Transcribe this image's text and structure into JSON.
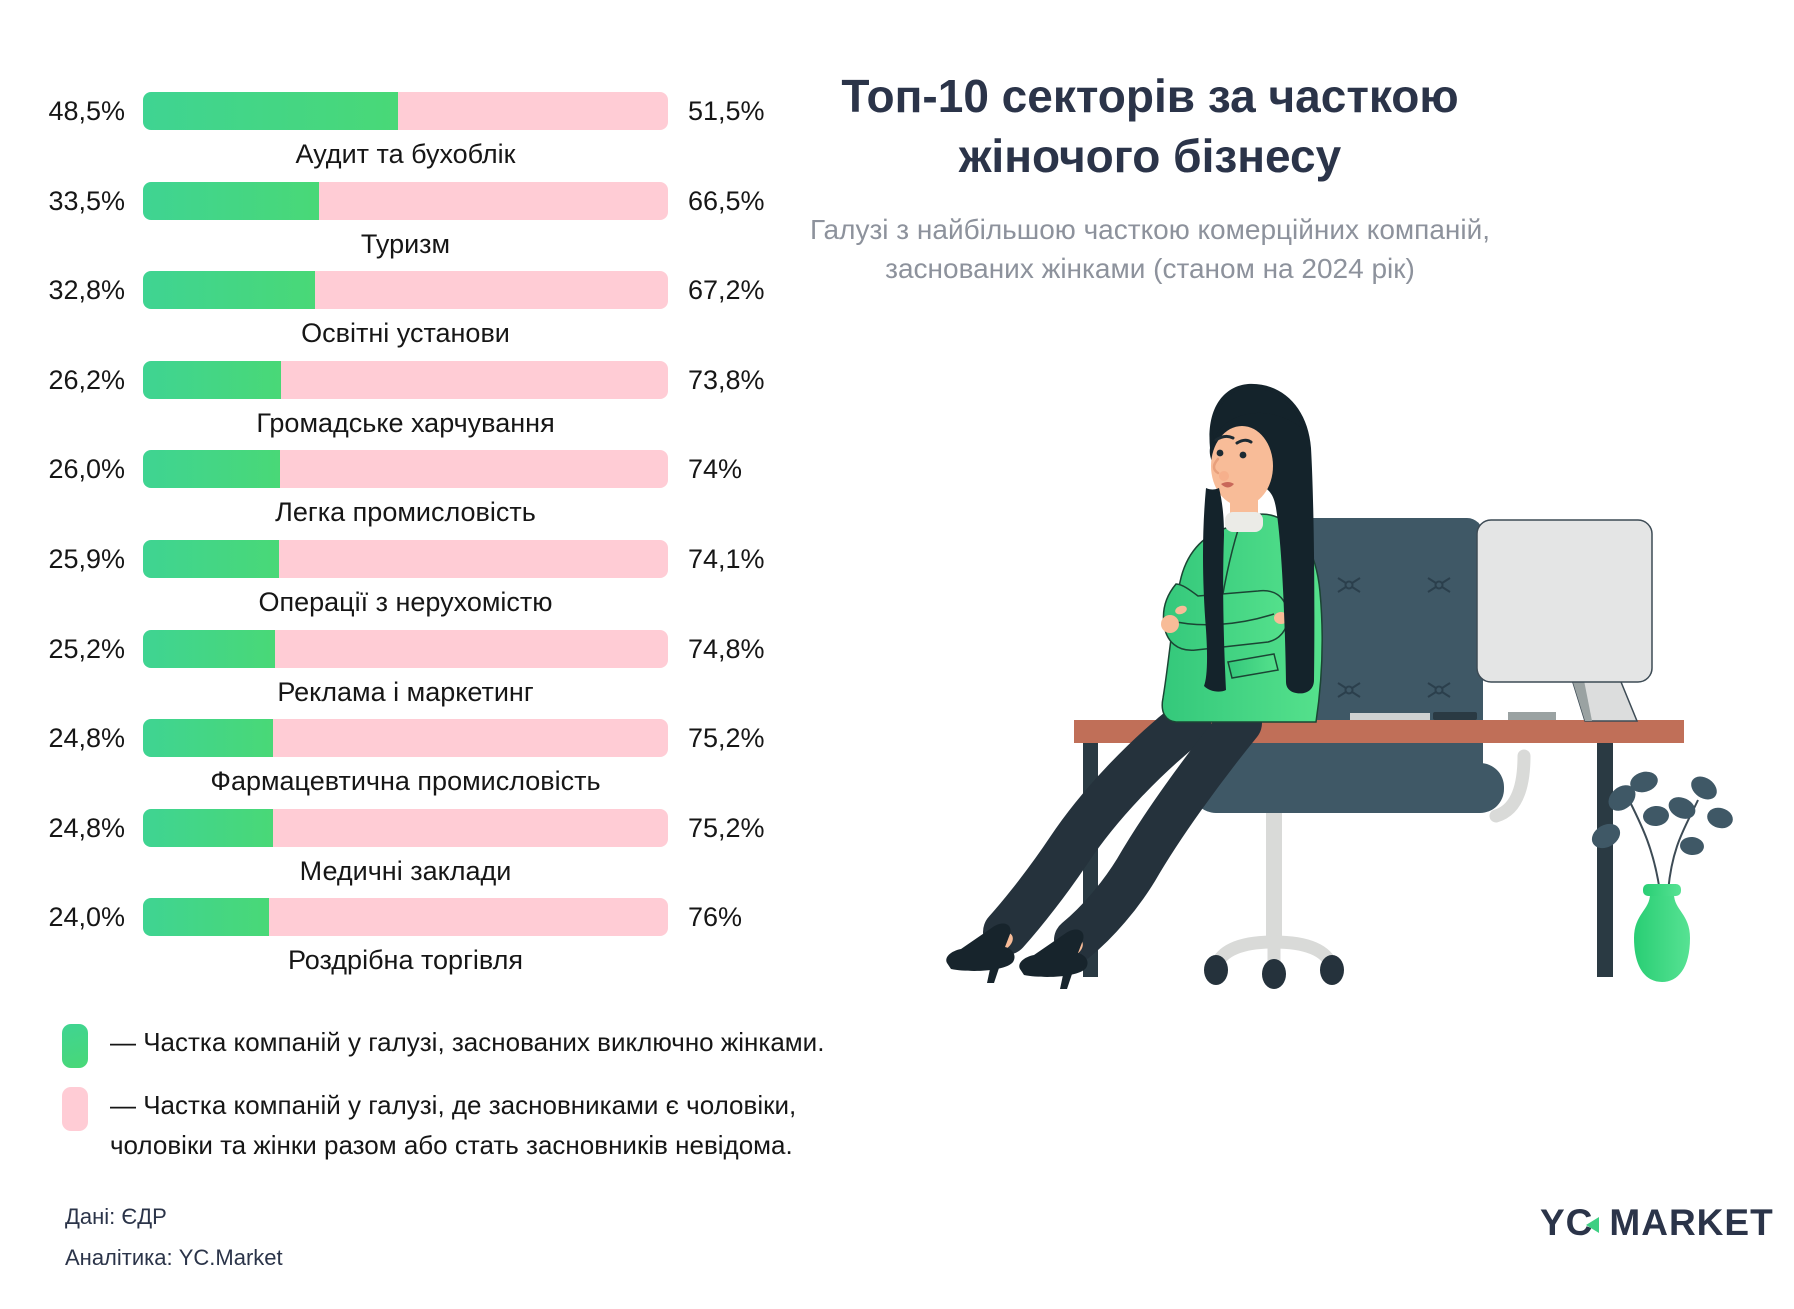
{
  "header": {
    "title": "Топ-10 секторів за часткою\nжіночого бізнесу",
    "subtitle": "Галузі з найбільшою часткою комерційних компаній,\nзаснованих жінками (станом на 2024 рік)"
  },
  "chart_data": {
    "type": "bar",
    "orientation": "horizontal",
    "stacked": true,
    "xlim": [
      0,
      100
    ],
    "categories": [
      "Аудит та бухоблік",
      "Туризм",
      "Освітні установи",
      "Громадське харчування",
      "Легка промисловість",
      "Операції з нерухомістю",
      "Реклама і маркетинг",
      "Фармацевтична промисловість",
      "Медичні заклади",
      "Роздрібна торгівля"
    ],
    "series": [
      {
        "name": "Частка компаній у галузі, заснованих виключно жінками.",
        "color": "#3fd492",
        "values": [
          48.5,
          33.5,
          32.8,
          26.2,
          26.0,
          25.9,
          25.2,
          24.8,
          24.8,
          24.0
        ]
      },
      {
        "name": "Частка компаній у галузі, де засновниками є чоловіки, чоловіки та жінки разом або стать засновників невідома.",
        "color": "#ffccd5",
        "values": [
          51.5,
          66.5,
          67.2,
          73.8,
          74.0,
          74.1,
          74.8,
          75.2,
          75.2,
          76.0
        ]
      }
    ],
    "value_labels_left": [
      "48,5%",
      "33,5%",
      "32,8%",
      "26,2%",
      "26,0%",
      "25,9%",
      "25,2%",
      "24,8%",
      "24,8%",
      "24,0%"
    ],
    "value_labels_right": [
      "51,5%",
      "66,5%",
      "67,2%",
      "73,8%",
      "74%",
      "74,1%",
      "74,8%",
      "75,2%",
      "75,2%",
      "76%"
    ],
    "legend_position": "bottom-left",
    "grid": false
  },
  "legend": {
    "items": [
      {
        "label": "— Частка компаній у галузі, заснованих виключно жінками.",
        "color": "#3fd492"
      },
      {
        "label": "— Частка компаній у галузі, де засновниками є чоловіки,\nчоловіки та жінки разом або стать засновників невідома.",
        "color": "#ffccd5"
      }
    ]
  },
  "source": {
    "line1": "Дані: ЄДР",
    "line2": "Аналітика: YC.Market"
  },
  "logo": {
    "part1": "YC",
    "part2": "MARKET",
    "accent": "#3ecf83"
  },
  "colors": {
    "bar_green_start": "#3fd492",
    "bar_green_end": "#49d877",
    "bar_pink": "#ffccd5",
    "title_navy": "#2b3449",
    "subtitle_gray": "#8d929c",
    "text_dark": "#161616"
  }
}
